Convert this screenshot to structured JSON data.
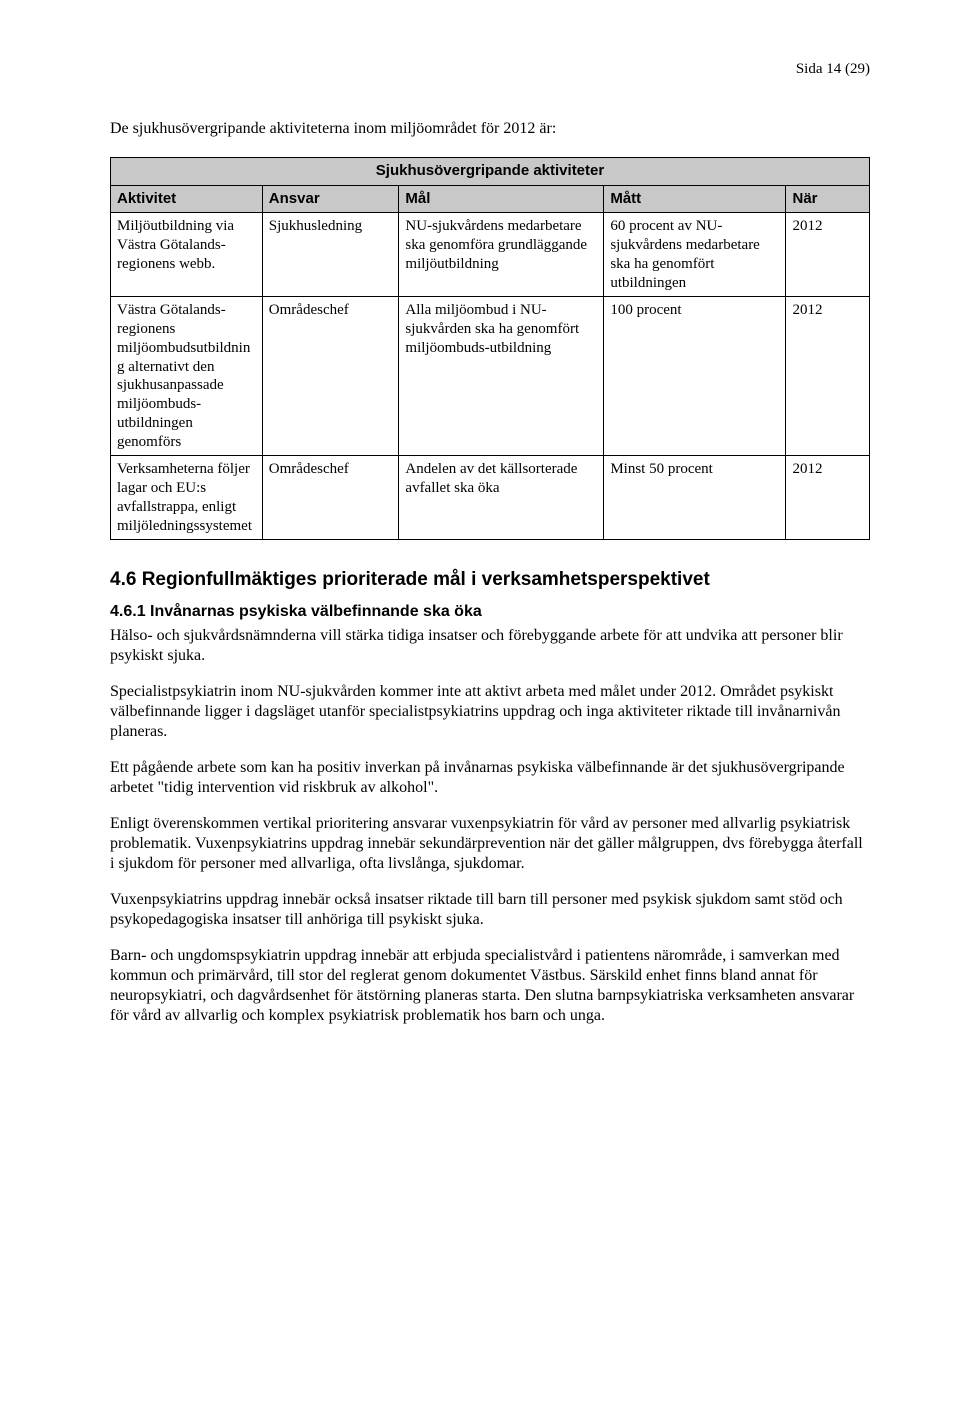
{
  "page_number": "Sida 14 (29)",
  "intro": "De sjukhusövergripande aktiviteterna inom miljöområdet för 2012 är:",
  "table": {
    "banner": "Sjukhusövergripande aktiviteter",
    "columns": [
      "Aktivitet",
      "Ansvar",
      "Mål",
      "Mått",
      "När"
    ],
    "rows": [
      {
        "aktivitet": "Miljöutbildning via Västra Götalands-regionens webb.",
        "ansvar": "Sjukhusledning",
        "mal": "NU-sjukvårdens medarbetare ska genomföra grundläggande miljöutbildning",
        "matt": "60 procent av NU-sjukvårdens medarbetare ska ha genomfört utbildningen",
        "nar": "2012"
      },
      {
        "aktivitet": "Västra Götalands-regionens miljöombudsutbildning alternativt den sjukhusanpassade miljöombuds-utbildningen genomförs",
        "ansvar": "Områdeschef",
        "mal": "Alla miljöombud i NU-sjukvården ska ha genomfört miljöombuds-utbildning",
        "matt": "100 procent",
        "nar": "2012"
      },
      {
        "aktivitet": "Verksamheterna följer lagar och EU:s avfallstrappa, enligt miljöledningssystemet",
        "ansvar": "Områdeschef",
        "mal": "Andelen av det källsorterade avfallet ska öka",
        "matt": "Minst 50 procent",
        "nar": "2012"
      }
    ]
  },
  "h2": "4.6 Regionfullmäktiges prioriterade mål i verksamhetsperspektivet",
  "h3": "4.6.1 Invånarnas psykiska välbefinnande ska öka",
  "paragraphs": [
    "Hälso- och sjukvårdsnämnderna vill stärka tidiga insatser och förebyggande arbete för att undvika att personer blir psykiskt sjuka.",
    "Specialistpsykiatrin inom NU-sjukvården kommer inte att aktivt arbeta med målet under 2012. Området psykiskt välbefinnande ligger i dagsläget utanför specialistpsykiatrins uppdrag och inga aktiviteter riktade till invånarnivån planeras.",
    "Ett pågående arbete som kan ha positiv inverkan på invånarnas psykiska välbefinnande är det sjukhusövergripande arbetet \"tidig intervention vid riskbruk av alkohol\".",
    "Enligt överenskommen vertikal prioritering ansvarar vuxenpsykiatrin för vård av personer med allvarlig psykiatrisk problematik. Vuxenpsykiatrins uppdrag innebär sekundärprevention när det gäller målgruppen, dvs förebygga återfall i sjukdom för personer med allvarliga, ofta livslånga, sjukdomar.",
    "Vuxenpsykiatrins uppdrag innebär också insatser riktade till barn till personer med psykisk sjukdom samt stöd och psykopedagogiska insatser till anhöriga till psykiskt sjuka.",
    "Barn- och ungdomspsykiatrin uppdrag innebär att erbjuda specialistvård i patientens närområde, i samverkan med kommun och primärvård, till stor del reglerat genom dokumentet Västbus. Särskild enhet finns bland annat för neuropsykiatri, och dagvårdsenhet för ätstörning planeras starta. Den slutna barnpsykiatriska verksamheten ansvarar för vård av allvarlig och komplex psykiatrisk problematik hos barn och unga."
  ]
}
